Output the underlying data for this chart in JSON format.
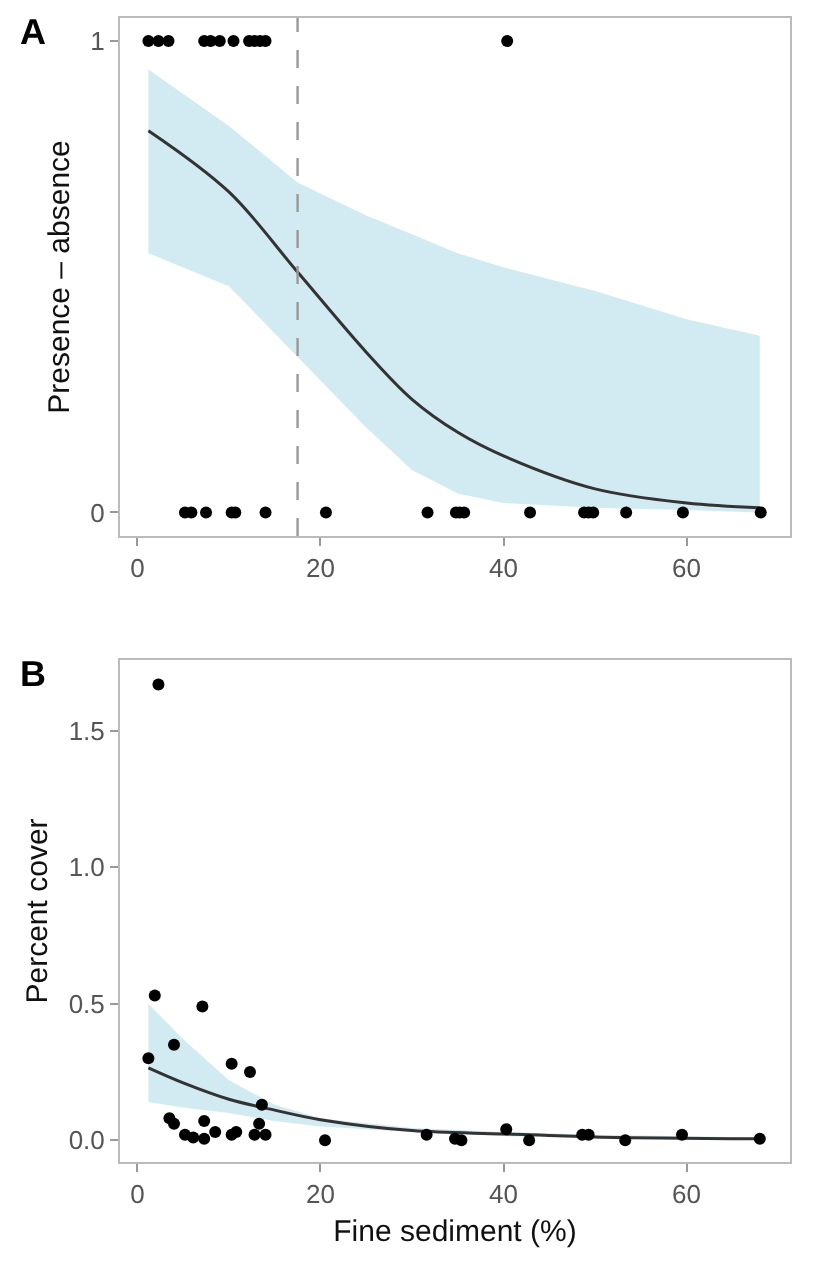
{
  "chart_data": [
    {
      "type": "scatter",
      "ylabel": "Presence – absence",
      "annotations": [
        "A"
      ],
      "xlim": [
        -1.9,
        71.3
      ],
      "ylim": [
        -0.05,
        1.049
      ],
      "xticks": [
        0,
        20,
        40,
        60
      ],
      "yticks": [
        0,
        1
      ],
      "marker": "circle",
      "series": [
        {
          "type": "scatter",
          "color": "#000000",
          "x": [
            1.2,
            2.3,
            3.4,
            7.3,
            8,
            9,
            10.5,
            12.2,
            12.8,
            13.4,
            14,
            40.4,
            5.2,
            5.9,
            7.5,
            10.3,
            10.7,
            14,
            20.6,
            31.7,
            34.8,
            35.2,
            35.7,
            42.9,
            48.8,
            49.3,
            49.8,
            53.4,
            59.6,
            68.1
          ],
          "values": [
            1,
            1,
            1,
            1,
            1,
            1,
            1,
            1,
            1,
            1,
            1,
            1,
            0,
            0,
            0,
            0,
            0,
            0,
            0,
            0,
            0,
            0,
            0,
            0,
            0,
            0,
            0,
            0,
            0,
            0
          ]
        },
        {
          "type": "line",
          "color": "#333333",
          "marker": "none",
          "x": [
            1.2,
            10,
            17.5,
            25,
            30,
            35,
            40,
            50,
            60,
            68
          ],
          "values": [
            0.81,
            0.68,
            0.51,
            0.34,
            0.24,
            0.17,
            0.12,
            0.05,
            0.02,
            0.01
          ],
          "lower": [
            0.55,
            0.48,
            0.33,
            0.18,
            0.09,
            0.04,
            0.02,
            0.01,
            0.005,
            0
          ],
          "upper": [
            0.94,
            0.82,
            0.7,
            0.63,
            0.59,
            0.55,
            0.52,
            0.47,
            0.41,
            0.375
          ]
        }
      ],
      "ref_lines": [
        {
          "axis": "x",
          "value": 17.5,
          "color": "#999999",
          "line_style": "dashed"
        }
      ]
    },
    {
      "type": "scatter",
      "xlabel": "Fine sediment (%)",
      "ylabel": "Percent cover",
      "annotations": [
        "B"
      ],
      "xlim": [
        -1.9,
        71.3
      ],
      "ylim": [
        -0.08,
        1.76
      ],
      "xticks": [
        0,
        20,
        40,
        60
      ],
      "yticks": [
        {
          "value": 0,
          "label": "0.0"
        },
        {
          "value": 0.5,
          "label": "0.5"
        },
        {
          "value": 1,
          "label": "1.0"
        },
        {
          "value": 1.5,
          "label": "1.5"
        }
      ],
      "marker": "circle",
      "series": [
        {
          "type": "scatter",
          "color": "#000000",
          "x": [
            1.2,
            1.9,
            2.3,
            4.0,
            3.5,
            4.0,
            5.2,
            6.1,
            7.1,
            7.3,
            7.3,
            8.5,
            10.3,
            10.3,
            10.8,
            12.3,
            12.8,
            13.3,
            13.6,
            14.0,
            20.5,
            31.6,
            34.7,
            35.4,
            40.3,
            42.8,
            48.6,
            49.3,
            53.3,
            59.5,
            68.0
          ],
          "values": [
            0.3,
            0.53,
            1.67,
            0.35,
            0.08,
            0.06,
            0.02,
            0.01,
            0.49,
            0.07,
            0.005,
            0.03,
            0.28,
            0.02,
            0.03,
            0.25,
            0.02,
            0.06,
            0.13,
            0.02,
            0,
            0.02,
            0.005,
            0,
            0.04,
            0,
            0.02,
            0.02,
            0,
            0.02,
            0.005
          ]
        },
        {
          "type": "line",
          "color": "#333333",
          "marker": "none",
          "x": [
            1.2,
            5,
            10,
            15,
            20,
            30,
            40,
            50,
            68
          ],
          "values": [
            0.265,
            0.21,
            0.15,
            0.11,
            0.075,
            0.035,
            0.023,
            0.012,
            0.005
          ],
          "lower": [
            0.14,
            0.12,
            0.1,
            0.07,
            0.05,
            0.03,
            0.015,
            0.008,
            0.002
          ],
          "upper": [
            0.5,
            0.37,
            0.22,
            0.13,
            0.08,
            0.045,
            0.03,
            0.02,
            0.01
          ]
        }
      ]
    }
  ]
}
